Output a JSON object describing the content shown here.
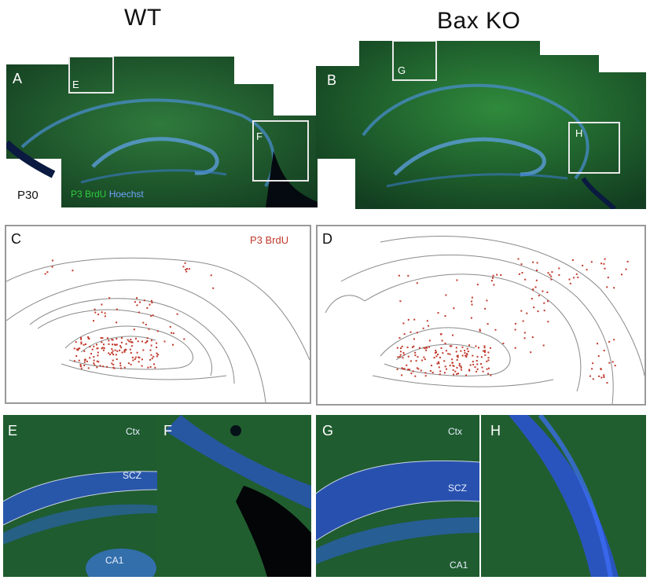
{
  "columns": {
    "left_title": "WT",
    "right_title": "Bax KO"
  },
  "top_row": {
    "A": {
      "label": "A",
      "boxes": [
        "E",
        "F"
      ]
    },
    "B": {
      "label": "B",
      "boxes": [
        "G",
        "H"
      ]
    },
    "age": "P30",
    "stain_green": "P3 BrdU",
    "stain_blue": "Hoechst"
  },
  "middle_row": {
    "C": {
      "label": "C"
    },
    "D": {
      "label": "D"
    },
    "legend": "P3 BrdU"
  },
  "bottom_row": {
    "E": {
      "label": "E",
      "regions": [
        "Ctx",
        "SCZ",
        "CA1"
      ]
    },
    "F": {
      "label": "F"
    },
    "G": {
      "label": "G",
      "regions": [
        "Ctx",
        "SCZ",
        "CA1"
      ]
    },
    "H": {
      "label": "H"
    }
  },
  "colors": {
    "tissue_green": "#1d5a2c",
    "hoechst_blue": "#2a5bd8",
    "brdu_red": "#c0392b",
    "trace_gray": "#8a8a8a"
  }
}
